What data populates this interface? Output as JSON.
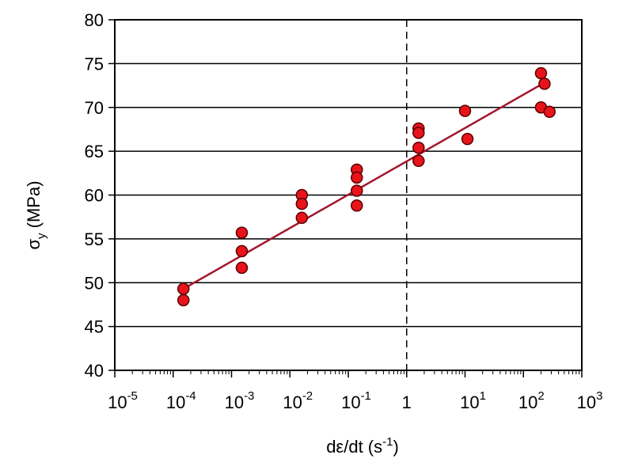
{
  "chart_data": {
    "type": "scatter",
    "xscale": "log",
    "xlim": [
      1e-05,
      1000
    ],
    "ylim": [
      40,
      80
    ],
    "grid": "horizontal",
    "xlabel_parts": [
      "dε/dt (s",
      "-1",
      ")"
    ],
    "ylabel_parts": [
      "σ",
      "y",
      " (MPa)"
    ],
    "x_ticks": [
      {
        "base": "10",
        "exp": "-5",
        "value": 1e-05
      },
      {
        "base": "10",
        "exp": "-4",
        "value": 0.0001
      },
      {
        "base": "10",
        "exp": "-3",
        "value": 0.001
      },
      {
        "base": "10",
        "exp": "-2",
        "value": 0.01
      },
      {
        "base": "10",
        "exp": "-1",
        "value": 0.1
      },
      {
        "base": "1",
        "exp": "",
        "value": 1
      },
      {
        "base": "10",
        "exp": "1",
        "value": 10
      },
      {
        "base": "10",
        "exp": "2",
        "value": 100
      },
      {
        "base": "10",
        "exp": "3",
        "value": 1000
      }
    ],
    "y_ticks": [
      "40",
      "45",
      "50",
      "55",
      "60",
      "65",
      "70",
      "75",
      "80"
    ],
    "reference_line_x": 1,
    "points": [
      {
        "x": 0.00015,
        "y": 49.3
      },
      {
        "x": 0.00015,
        "y": 48.0
      },
      {
        "x": 0.0015,
        "y": 55.7
      },
      {
        "x": 0.0015,
        "y": 53.6
      },
      {
        "x": 0.0015,
        "y": 51.7
      },
      {
        "x": 0.016,
        "y": 60.0
      },
      {
        "x": 0.016,
        "y": 59.0
      },
      {
        "x": 0.016,
        "y": 57.4
      },
      {
        "x": 0.14,
        "y": 62.9
      },
      {
        "x": 0.14,
        "y": 62.0
      },
      {
        "x": 0.14,
        "y": 60.5
      },
      {
        "x": 0.14,
        "y": 58.8
      },
      {
        "x": 1.6,
        "y": 67.6
      },
      {
        "x": 1.6,
        "y": 67.1
      },
      {
        "x": 1.6,
        "y": 65.4
      },
      {
        "x": 1.6,
        "y": 63.9
      },
      {
        "x": 10,
        "y": 69.6
      },
      {
        "x": 11,
        "y": 66.4
      },
      {
        "x": 200,
        "y": 73.9
      },
      {
        "x": 230,
        "y": 72.7
      },
      {
        "x": 200,
        "y": 70.0
      },
      {
        "x": 280,
        "y": 69.5
      }
    ],
    "fit_line": {
      "x": [
        0.00015,
        200
      ],
      "y": [
        49.3,
        72.6
      ]
    },
    "colors": {
      "point_fill": "#e8141c",
      "point_stroke": "#5a0000",
      "fit_line": "#a0172d",
      "grid": "#000000",
      "axis": "#000000"
    }
  }
}
